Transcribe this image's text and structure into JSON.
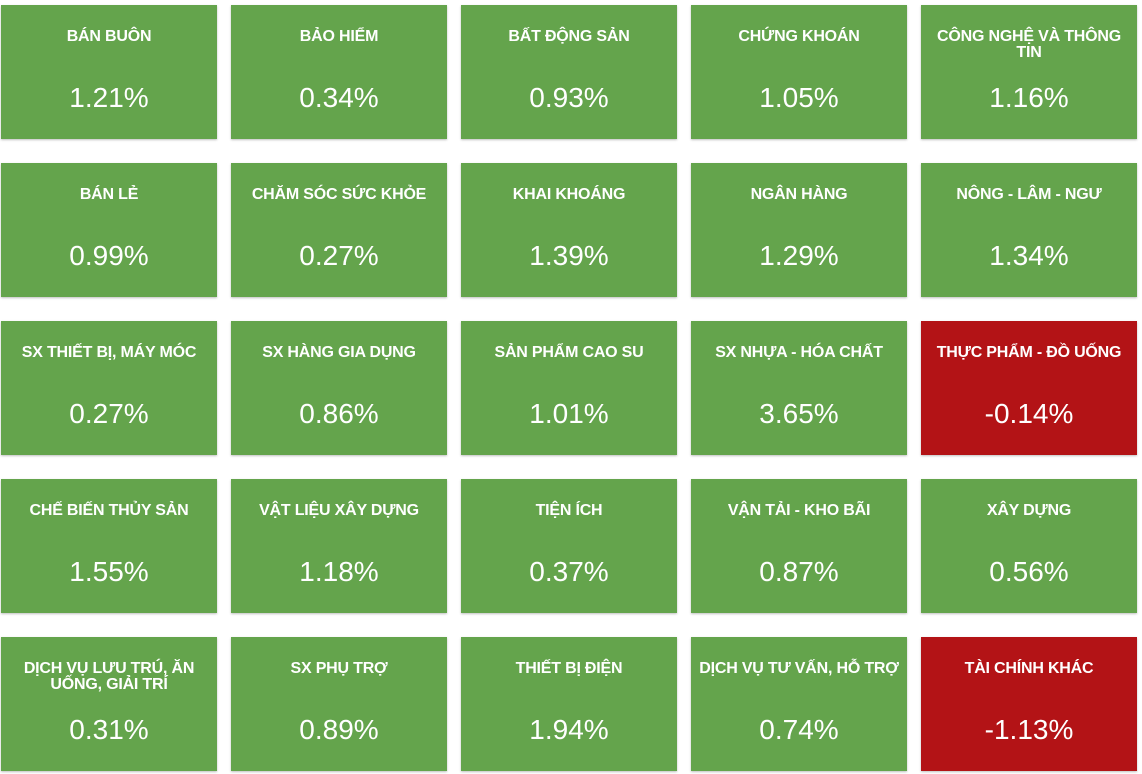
{
  "sectors": [
    {
      "name": "BÁN BUÔN",
      "change": "1.21%",
      "status": "up"
    },
    {
      "name": "BẢO HIỂM",
      "change": "0.34%",
      "status": "up"
    },
    {
      "name": "BẤT ĐỘNG SẢN",
      "change": "0.93%",
      "status": "up"
    },
    {
      "name": "CHỨNG KHOÁN",
      "change": "1.05%",
      "status": "up"
    },
    {
      "name": "CÔNG NGHỆ VÀ THÔNG TIN",
      "change": "1.16%",
      "status": "up"
    },
    {
      "name": "BÁN LẺ",
      "change": "0.99%",
      "status": "up"
    },
    {
      "name": "CHĂM SÓC SỨC KHỎE",
      "change": "0.27%",
      "status": "up"
    },
    {
      "name": "KHAI KHOÁNG",
      "change": "1.39%",
      "status": "up"
    },
    {
      "name": "NGÂN HÀNG",
      "change": "1.29%",
      "status": "up"
    },
    {
      "name": "NÔNG - LÂM - NGƯ",
      "change": "1.34%",
      "status": "up"
    },
    {
      "name": "SX THIẾT BỊ, MÁY MÓC",
      "change": "0.27%",
      "status": "up"
    },
    {
      "name": "SX HÀNG GIA DỤNG",
      "change": "0.86%",
      "status": "up"
    },
    {
      "name": "SẢN PHẨM CAO SU",
      "change": "1.01%",
      "status": "up"
    },
    {
      "name": "SX NHỰA - HÓA CHẤT",
      "change": "3.65%",
      "status": "up"
    },
    {
      "name": "THỰC PHẨM - ĐỒ UỐNG",
      "change": "-0.14%",
      "status": "down"
    },
    {
      "name": "CHẾ BIẾN THỦY SẢN",
      "change": "1.55%",
      "status": "up"
    },
    {
      "name": "VẬT LIỆU XÂY DỰNG",
      "change": "1.18%",
      "status": "up"
    },
    {
      "name": "TIỆN ÍCH",
      "change": "0.37%",
      "status": "up"
    },
    {
      "name": "VẬN TẢI - KHO BÃI",
      "change": "0.87%",
      "status": "up"
    },
    {
      "name": "XÂY DỰNG",
      "change": "0.56%",
      "status": "up"
    },
    {
      "name": "DỊCH VỤ LƯU TRÚ, ĂN UỐNG, GIẢI TRÍ",
      "change": "0.31%",
      "status": "up"
    },
    {
      "name": "SX PHỤ TRỢ",
      "change": "0.89%",
      "status": "up"
    },
    {
      "name": "THIẾT BỊ ĐIỆN",
      "change": "1.94%",
      "status": "up"
    },
    {
      "name": "DỊCH VỤ TƯ VẤN, HỖ TRỢ",
      "change": "0.74%",
      "status": "up"
    },
    {
      "name": "TÀI CHÍNH KHÁC",
      "change": "-1.13%",
      "status": "down"
    }
  ],
  "colors": {
    "up": "#64a44c",
    "down": "#b31316",
    "text": "#ffffff"
  }
}
